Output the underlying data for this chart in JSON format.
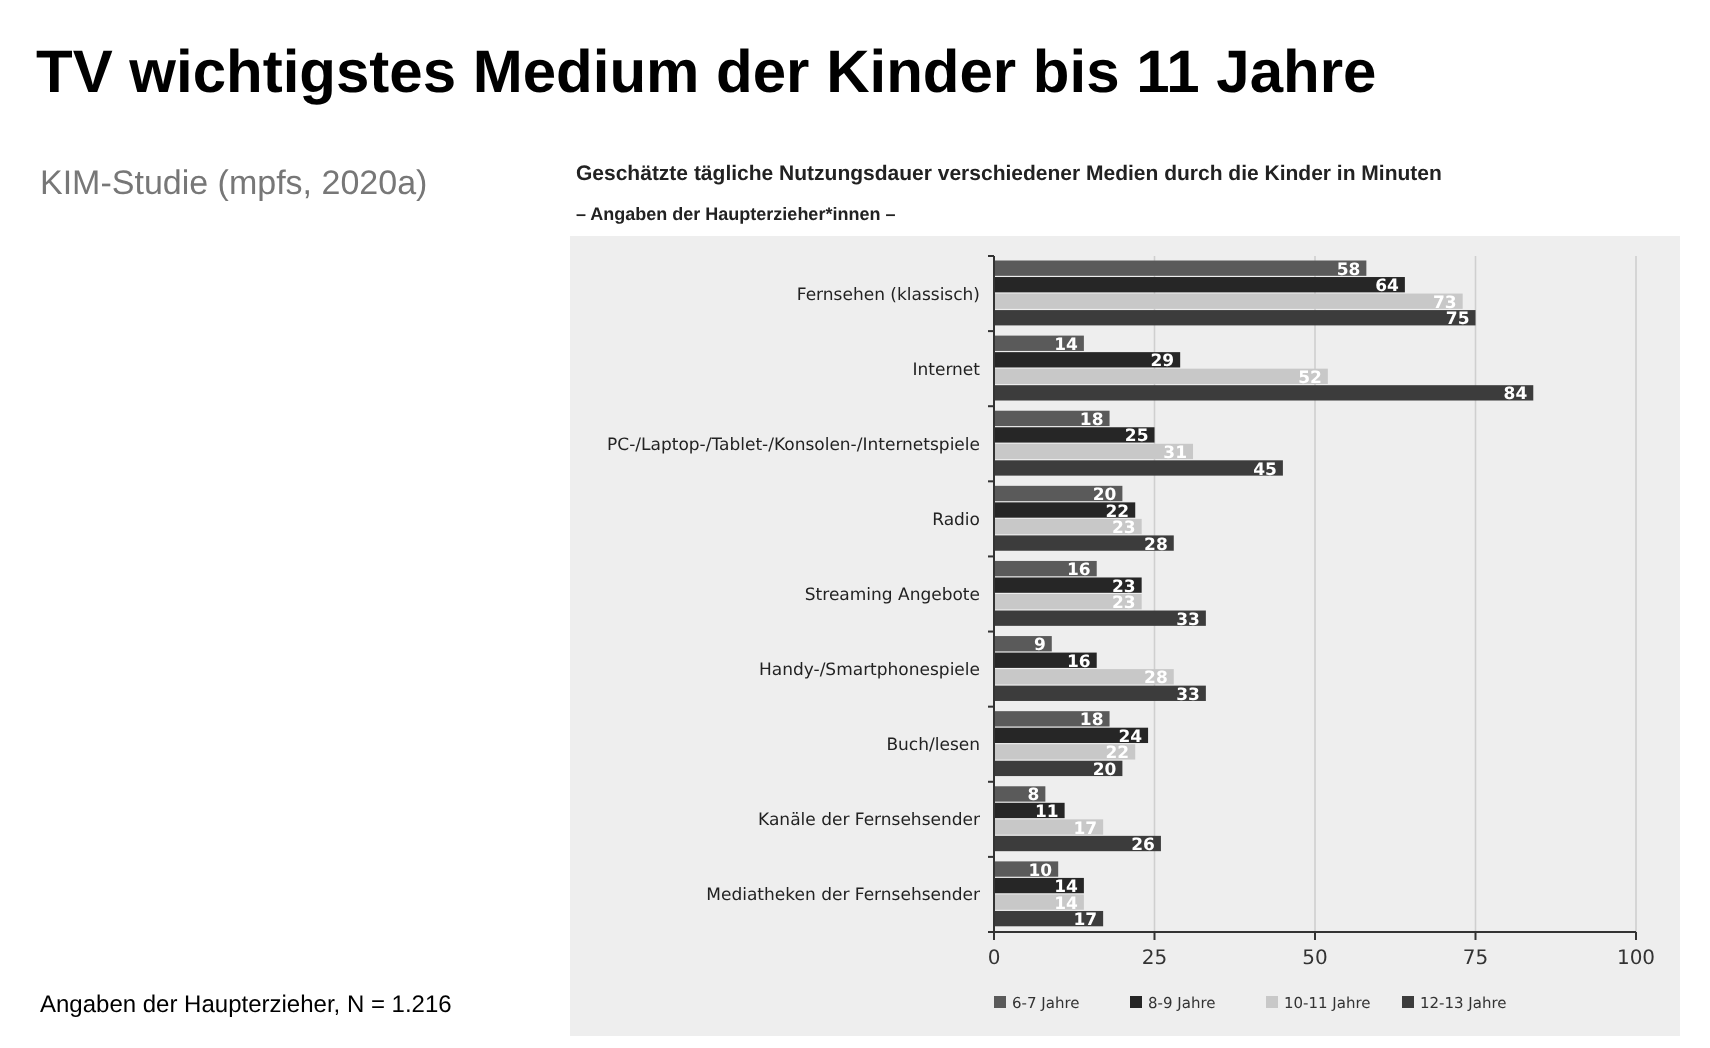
{
  "chart_data": {
    "type": "bar",
    "orientation": "horizontal",
    "title": "TV wichtigstes Medium der Kinder bis 11 Jahre",
    "subtitle": "Geschätzte tägliche Nutzungsdauer verschiedener Medien durch die Kinder in Minuten",
    "annotations": [
      "KIM-Studie (mpfs, 2020a)",
      "– Angaben der Haupterzieher*innen –",
      "Angaben der Haupterzieher, N = 1.216"
    ],
    "categories": [
      "Fernsehen (klassisch)",
      "Internet",
      "PC-/Laptop-/Tablet-/Konsolen-/Internetspiele",
      "Radio",
      "Streaming Angebote",
      "Handy-/Smartphonespiele",
      "Buch/lesen",
      "Kanäle der Fernsehsender",
      "Mediatheken der Fernsehsender"
    ],
    "series": [
      {
        "name": "6-7 Jahre",
        "color": "#5a5a5a",
        "values": [
          58,
          14,
          18,
          20,
          16,
          9,
          18,
          8,
          10
        ]
      },
      {
        "name": "8-9 Jahre",
        "color": "#262626",
        "values": [
          64,
          29,
          25,
          22,
          23,
          16,
          24,
          11,
          14
        ]
      },
      {
        "name": "10-11 Jahre",
        "color": "#c8c8c8",
        "values": [
          73,
          52,
          31,
          23,
          23,
          28,
          22,
          17,
          14
        ]
      },
      {
        "name": "12-13 Jahre",
        "color": "#3c3c3c",
        "values": [
          75,
          84,
          45,
          28,
          33,
          33,
          20,
          26,
          17
        ]
      }
    ],
    "xlim": [
      0,
      100
    ],
    "xticks": [
      0,
      25,
      50,
      75,
      100
    ],
    "grid": "x",
    "legend": "bottom",
    "data_labels": true
  }
}
